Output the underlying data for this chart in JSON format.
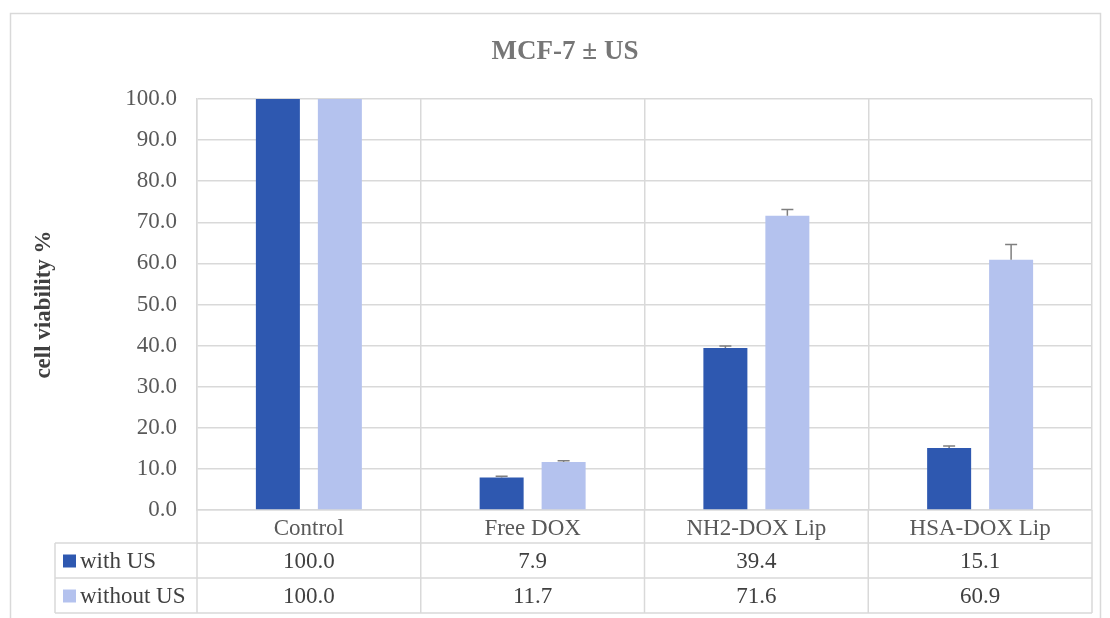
{
  "chart_data": {
    "type": "bar",
    "title": "MCF-7 ± US",
    "ylabel": "cell viability %",
    "categories": [
      "Control",
      "Free DOX",
      "NH2-DOX Lip",
      "HSA-DOX Lip"
    ],
    "series": [
      {
        "name": "with US",
        "color": "#2e58b0",
        "values": [
          100,
          7.9,
          39.4,
          15.1
        ],
        "errors": [
          null,
          [
            7.9,
            8.2
          ],
          [
            39.4,
            39.9
          ],
          [
            15.1,
            15.6
          ]
        ],
        "value_labels": [
          "100.0",
          "7.9",
          "39.4",
          "15.1"
        ]
      },
      {
        "name": "without US",
        "color": "#b4c2ee",
        "values": [
          100,
          11.7,
          71.6,
          60.9
        ],
        "errors": [
          null,
          [
            11.7,
            12.0
          ],
          [
            71.6,
            73.1
          ],
          [
            60.9,
            64.6
          ]
        ],
        "value_labels": [
          "100.0",
          "11.7",
          "71.6",
          "60.9"
        ]
      }
    ],
    "ylim": [
      0,
      100
    ],
    "yticks": [
      {
        "value": 0,
        "label": "0.0"
      },
      {
        "value": 10,
        "label": "10.0"
      },
      {
        "value": 20,
        "label": "20.0"
      },
      {
        "value": 30,
        "label": "30.0"
      },
      {
        "value": 40,
        "label": "40.0"
      },
      {
        "value": 50,
        "label": "50.0"
      },
      {
        "value": 60,
        "label": "60.0"
      },
      {
        "value": 70,
        "label": "70.0"
      },
      {
        "value": 80,
        "label": "80.0"
      },
      {
        "value": 90,
        "label": "90.0"
      },
      {
        "value": 100,
        "label": "100.0"
      }
    ],
    "grid": true,
    "legend": "bottom left"
  }
}
